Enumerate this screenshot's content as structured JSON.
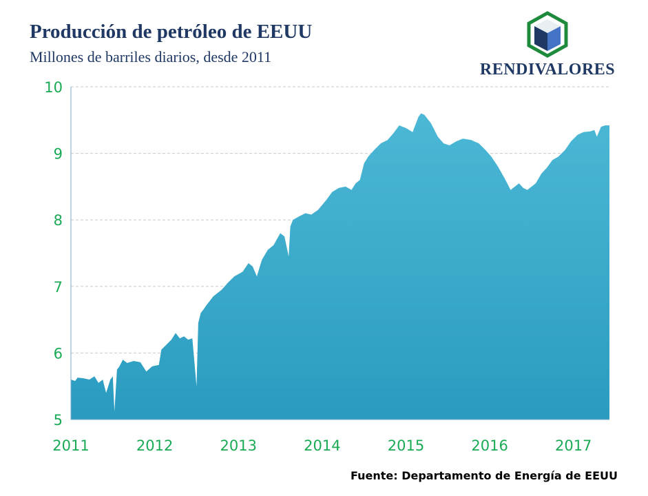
{
  "header": {
    "title": "Producción de petróleo de EEUU",
    "subtitle": "Millones de barriles diarios, desde 2011"
  },
  "logo": {
    "text": "RENDIVALORES",
    "colors": {
      "border": "#1e8a3c",
      "top": "#e8eef2",
      "left": "#1f3864",
      "right": "#4472c4"
    }
  },
  "footer": {
    "source": "Fuente: Departamento de Energía de EEUU"
  },
  "colors": {
    "fill_top": "#4cb8d6",
    "fill_bottom": "#2a9bbf",
    "tick": "#1aaa55",
    "grid": "#c8c8c8"
  },
  "chart_data": {
    "type": "area",
    "title": "Producción de petróleo de EEUU",
    "subtitle": "Millones de barriles diarios, desde 2011",
    "xlabel": "",
    "ylabel": "",
    "xlim": [
      2011.0,
      2017.43
    ],
    "ylim": [
      5,
      10
    ],
    "yticks": [
      5,
      6,
      7,
      8,
      9,
      10
    ],
    "xticks": [
      "2011",
      "2012",
      "2013",
      "2014",
      "2015",
      "2016",
      "2017"
    ],
    "grid": "horizontal dashed",
    "x": [
      2011.0,
      2011.05,
      2011.08,
      2011.15,
      2011.22,
      2011.28,
      2011.33,
      2011.38,
      2011.42,
      2011.47,
      2011.5,
      2011.52,
      2011.55,
      2011.58,
      2011.62,
      2011.67,
      2011.75,
      2011.83,
      2011.9,
      2011.97,
      2012.05,
      2012.08,
      2012.12,
      2012.2,
      2012.25,
      2012.3,
      2012.35,
      2012.4,
      2012.45,
      2012.5,
      2012.52,
      2012.55,
      2012.58,
      2012.62,
      2012.7,
      2012.8,
      2012.87,
      2012.95,
      2013.05,
      2013.12,
      2013.17,
      2013.22,
      2013.28,
      2013.35,
      2013.42,
      2013.5,
      2013.55,
      2013.6,
      2013.62,
      2013.65,
      2013.72,
      2013.8,
      2013.87,
      2013.95,
      2014.05,
      2014.12,
      2014.2,
      2014.28,
      2014.35,
      2014.4,
      2014.45,
      2014.5,
      2014.55,
      2014.62,
      2014.7,
      2014.78,
      2014.85,
      2014.92,
      2015.0,
      2015.08,
      2015.15,
      2015.18,
      2015.22,
      2015.3,
      2015.38,
      2015.45,
      2015.52,
      2015.6,
      2015.68,
      2015.78,
      2015.87,
      2015.95,
      2016.02,
      2016.1,
      2016.18,
      2016.25,
      2016.3,
      2016.35,
      2016.4,
      2016.45,
      2016.5,
      2016.55,
      2016.62,
      2016.68,
      2016.75,
      2016.82,
      2016.9,
      2016.97,
      2017.05,
      2017.12,
      2017.2,
      2017.25,
      2017.28,
      2017.33,
      2017.38,
      2017.43
    ],
    "y": [
      5.6,
      5.58,
      5.63,
      5.62,
      5.6,
      5.65,
      5.55,
      5.6,
      5.4,
      5.6,
      5.65,
      5.12,
      5.75,
      5.8,
      5.9,
      5.85,
      5.88,
      5.86,
      5.72,
      5.8,
      5.82,
      6.05,
      6.1,
      6.2,
      6.3,
      6.22,
      6.25,
      6.2,
      6.22,
      5.5,
      6.45,
      6.6,
      6.65,
      6.72,
      6.85,
      6.95,
      7.05,
      7.15,
      7.22,
      7.35,
      7.3,
      7.15,
      7.4,
      7.55,
      7.62,
      7.8,
      7.75,
      7.45,
      7.9,
      8.0,
      8.05,
      8.1,
      8.08,
      8.15,
      8.3,
      8.42,
      8.48,
      8.5,
      8.45,
      8.55,
      8.6,
      8.85,
      8.95,
      9.05,
      9.15,
      9.2,
      9.3,
      9.42,
      9.38,
      9.32,
      9.55,
      9.6,
      9.58,
      9.45,
      9.25,
      9.15,
      9.12,
      9.18,
      9.22,
      9.2,
      9.15,
      9.05,
      8.95,
      8.8,
      8.62,
      8.45,
      8.5,
      8.55,
      8.48,
      8.45,
      8.5,
      8.55,
      8.7,
      8.78,
      8.9,
      8.95,
      9.05,
      9.18,
      9.28,
      9.32,
      9.33,
      9.35,
      9.25,
      9.4,
      9.42,
      9.42
    ]
  }
}
